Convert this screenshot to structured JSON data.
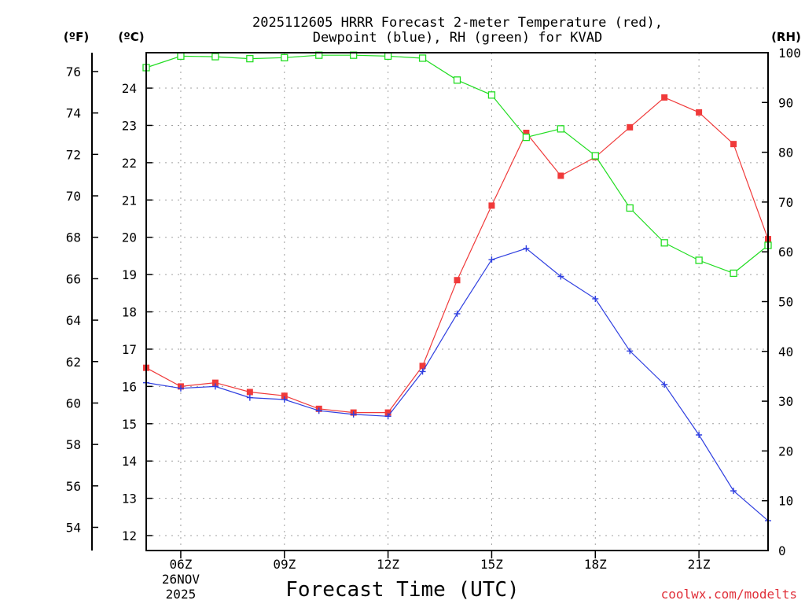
{
  "chart_data": {
    "type": "line",
    "title_line1": "2025112605 HRRR Forecast 2-meter Temperature (red),",
    "title_line2": "Dewpoint (blue), RH (green) for KVAD",
    "xlabel": "Forecast Time (UTC)",
    "credit": "coolwx.com/modelts",
    "units": {
      "fahrenheit": "(ºF)",
      "celsius": "(ºC)",
      "rh": "(RH)"
    },
    "x_hours": [
      5,
      6,
      7,
      8,
      9,
      10,
      11,
      12,
      13,
      14,
      15,
      16,
      17,
      18,
      19,
      20,
      21,
      22,
      23
    ],
    "x_ticks": [
      {
        "hour": 6,
        "label": "06Z",
        "sub1": "26NOV",
        "sub2": "2025"
      },
      {
        "hour": 9,
        "label": "09Z"
      },
      {
        "hour": 12,
        "label": "12Z"
      },
      {
        "hour": 15,
        "label": "15Z"
      },
      {
        "hour": 18,
        "label": "18Z"
      },
      {
        "hour": 21,
        "label": "21Z"
      }
    ],
    "xlim": [
      5,
      23
    ],
    "celsius_ylim": [
      11.6,
      24.95
    ],
    "celsius_ticks": [
      "12",
      "13",
      "14",
      "15",
      "16",
      "17",
      "18",
      "19",
      "20",
      "21",
      "22",
      "23",
      "24"
    ],
    "fahrenheit_ticks": [
      "54",
      "56",
      "58",
      "60",
      "62",
      "64",
      "66",
      "68",
      "70",
      "72",
      "74",
      "76"
    ],
    "rh_ylim": [
      0,
      100
    ],
    "rh_ticks": [
      "0",
      "10",
      "20",
      "30",
      "40",
      "50",
      "60",
      "70",
      "80",
      "90",
      "100"
    ],
    "series": [
      {
        "name": "Temperature",
        "units": "C",
        "color": "#f03a3a",
        "marker": "filled-square",
        "values": [
          16.5,
          16.0,
          16.1,
          15.85,
          15.75,
          15.4,
          15.3,
          15.3,
          16.55,
          18.85,
          20.85,
          22.8,
          21.65,
          22.15,
          22.95,
          23.75,
          23.35,
          22.5,
          19.95
        ]
      },
      {
        "name": "Dewpoint",
        "units": "C",
        "color": "#2f3fe0",
        "marker": "plus",
        "values": [
          16.1,
          15.95,
          16.0,
          15.7,
          15.65,
          15.35,
          15.25,
          15.2,
          16.4,
          17.95,
          19.4,
          19.7,
          18.95,
          18.35,
          16.95,
          16.05,
          14.7,
          13.2,
          12.4
        ]
      },
      {
        "name": "RH",
        "units": "%",
        "color": "#22dd22",
        "marker": "open-square",
        "values": [
          97.0,
          99.3,
          99.2,
          98.8,
          99.0,
          99.5,
          99.5,
          99.3,
          98.9,
          94.5,
          91.5,
          83.0,
          84.7,
          79.3,
          68.8,
          61.8,
          58.3,
          55.7,
          61.3
        ]
      }
    ]
  }
}
